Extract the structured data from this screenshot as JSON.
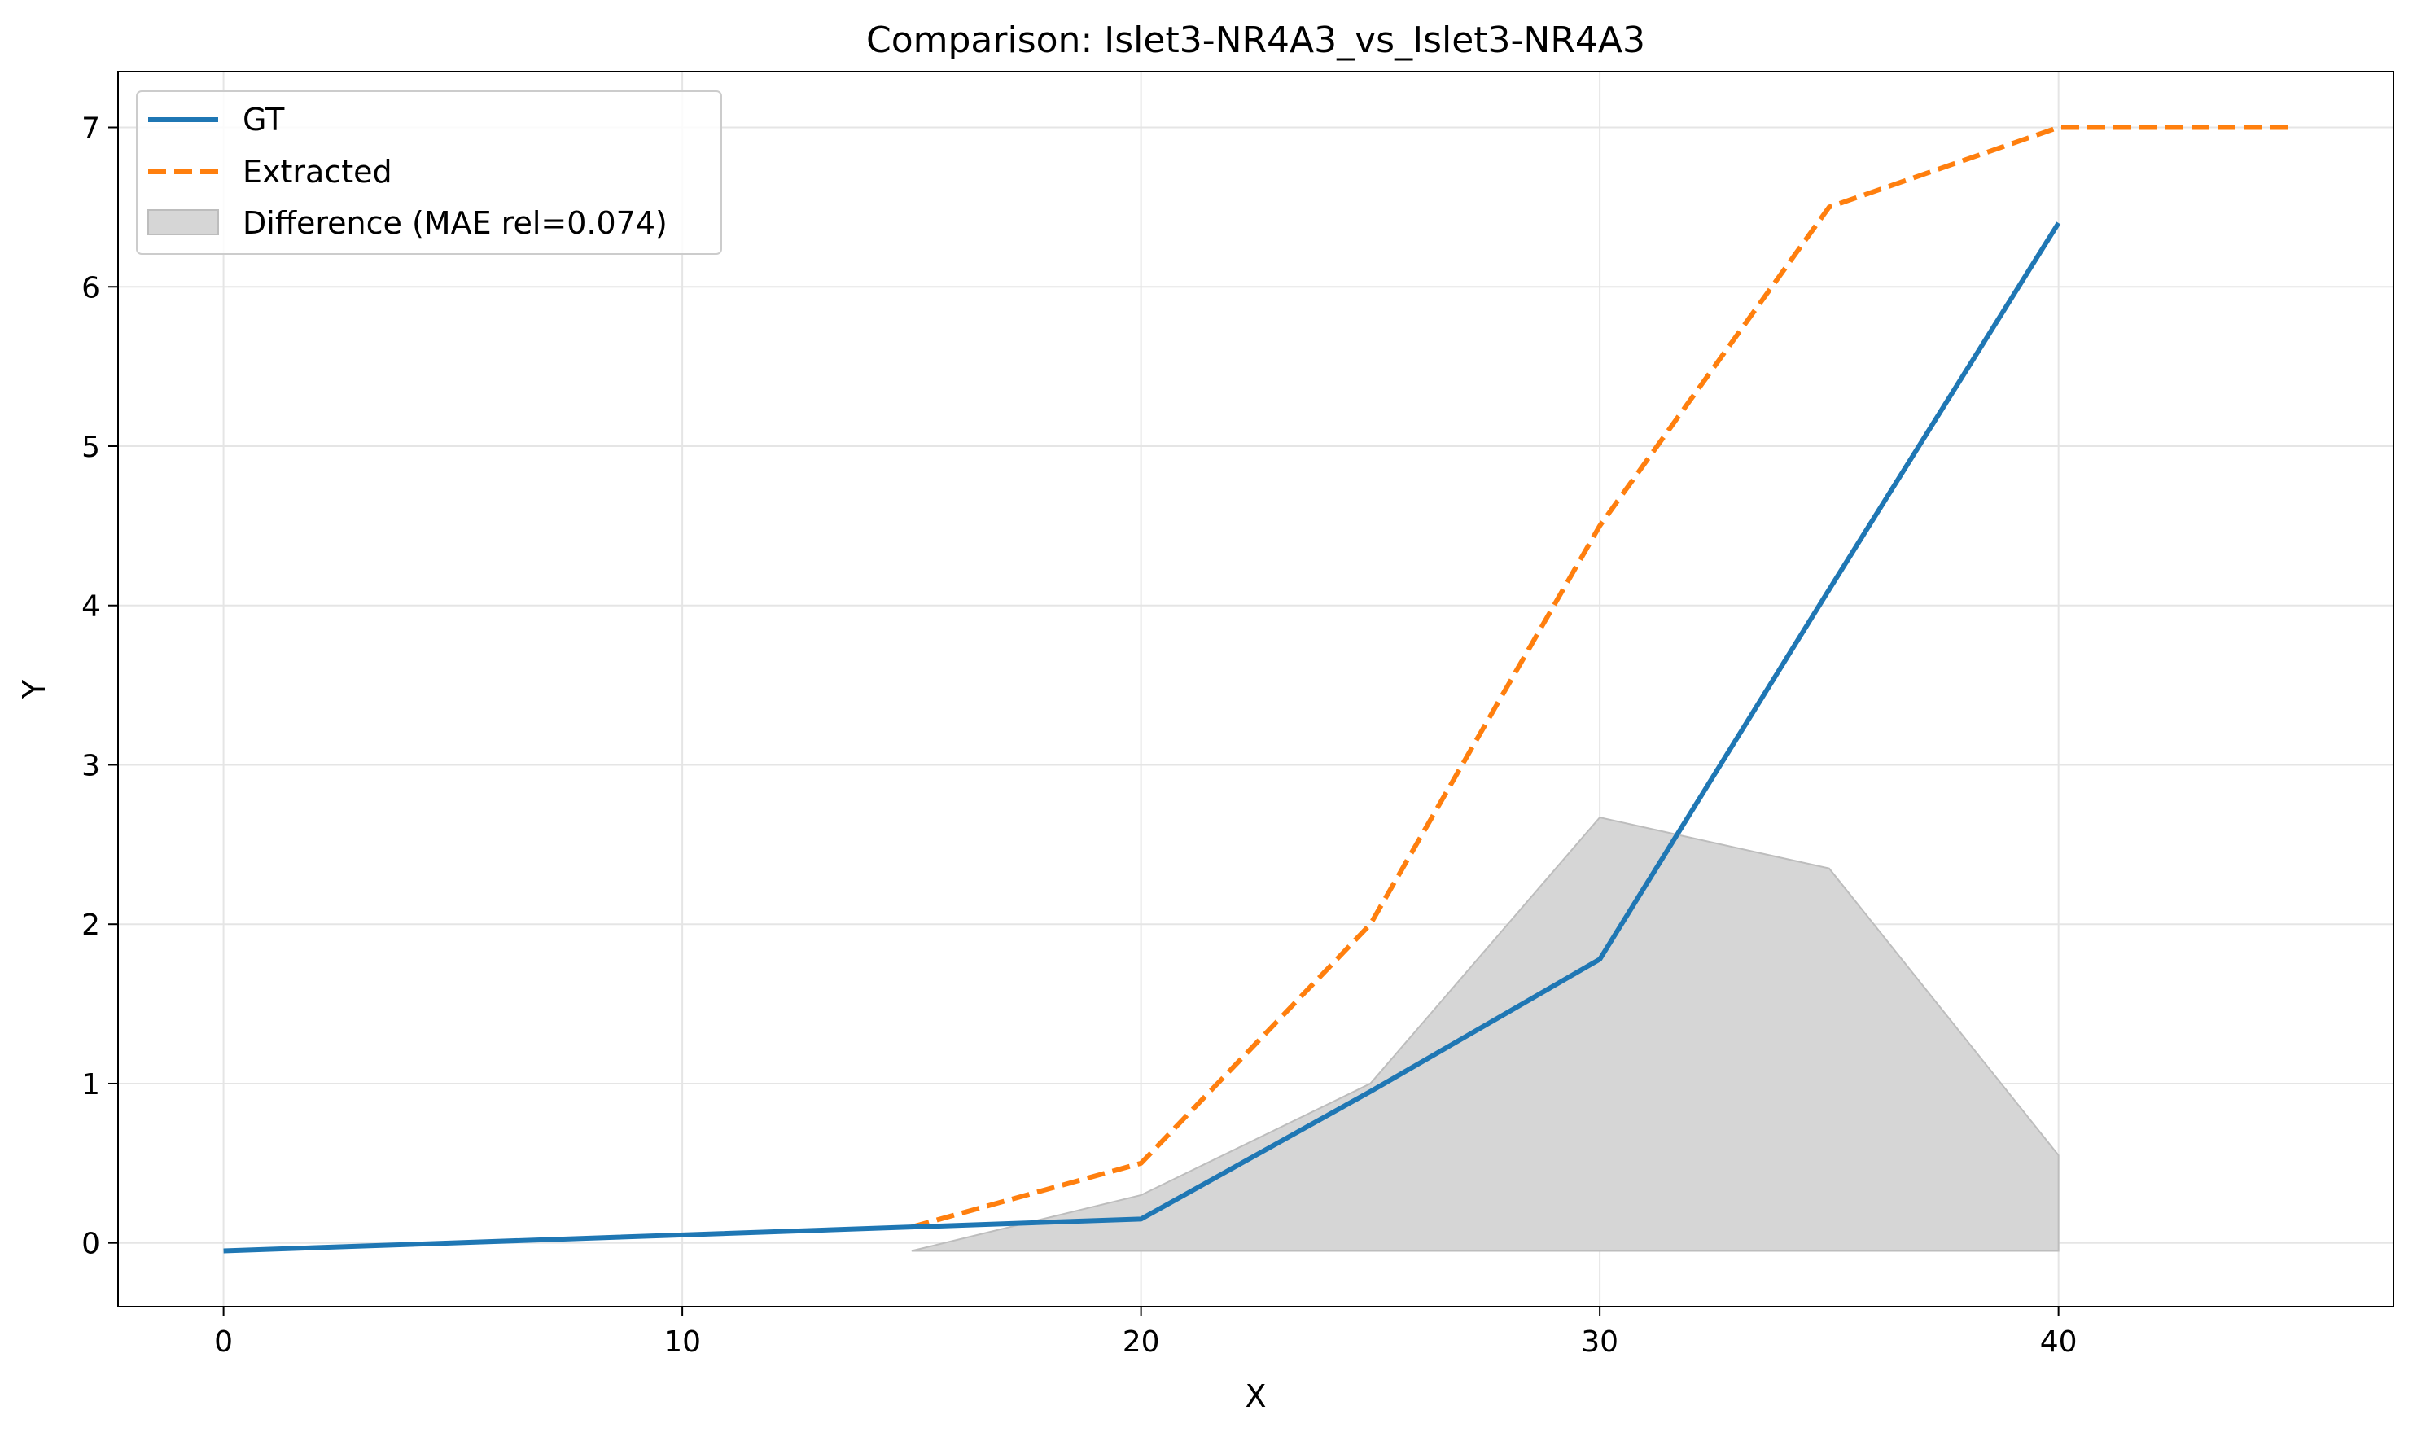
{
  "chart_data": {
    "type": "line",
    "title": "Comparison: Islet3-NR4A3_vs_Islet3-NR4A3",
    "xlabel": "X",
    "ylabel": "Y",
    "xlim": [
      -2.3,
      47.3
    ],
    "ylim": [
      -0.4,
      7.35
    ],
    "xticks": [
      0,
      10,
      20,
      30,
      40
    ],
    "yticks": [
      0,
      1,
      2,
      3,
      4,
      5,
      6,
      7
    ],
    "grid": true,
    "legend_position": "top-left",
    "series": [
      {
        "name": "GT",
        "style": "solid",
        "color": "#1f77b4",
        "x": [
          0,
          15,
          20,
          25,
          30,
          35,
          40
        ],
        "y": [
          -0.05,
          0.1,
          0.15,
          0.95,
          1.78,
          4.1,
          6.4
        ]
      },
      {
        "name": "Extracted",
        "style": "dashed",
        "color": "#ff7f0e",
        "x": [
          15,
          20,
          25,
          30,
          35,
          40,
          45
        ],
        "y": [
          0.1,
          0.5,
          2.0,
          4.5,
          6.5,
          7.0,
          7.0
        ]
      }
    ],
    "difference": {
      "name": "Difference (MAE rel=0.074)",
      "color": "#d6d6d6",
      "edge_color": "#bdbdbd",
      "x": [
        15,
        20,
        25,
        30,
        35,
        40
      ],
      "upper": [
        -0.05,
        0.3,
        1.0,
        2.67,
        2.35,
        0.55
      ],
      "lower": [
        -0.05,
        -0.05,
        -0.05,
        -0.05,
        -0.05,
        -0.05
      ]
    }
  }
}
